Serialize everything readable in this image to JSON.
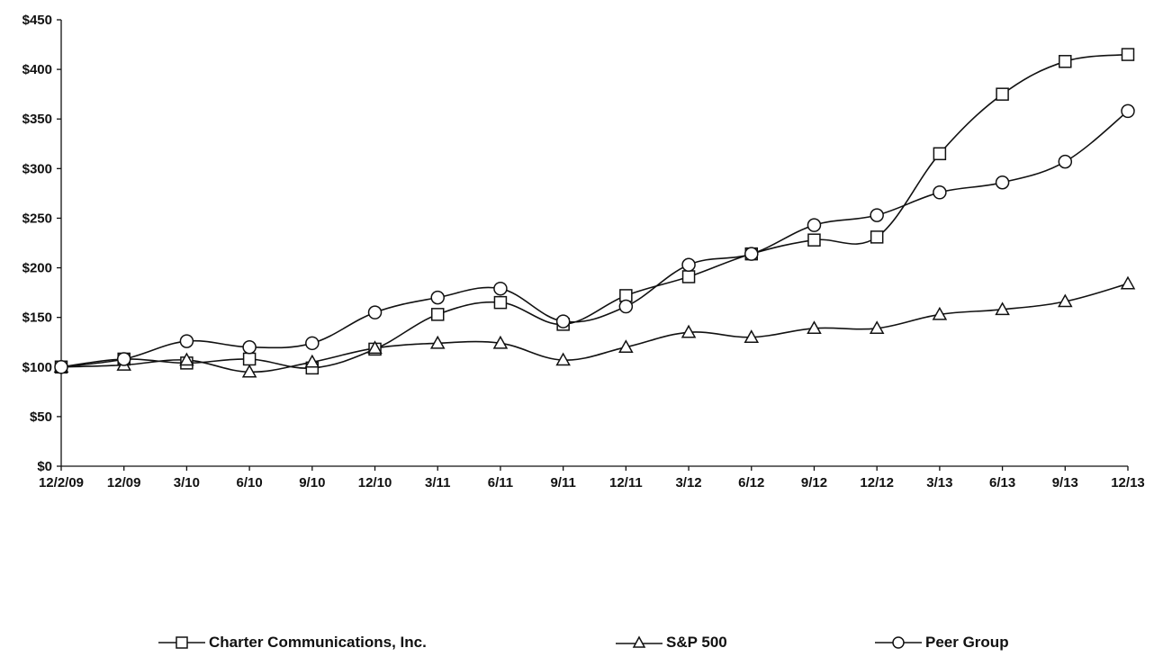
{
  "chart_data": {
    "type": "line",
    "title": "",
    "xlabel": "",
    "ylabel": "",
    "categories": [
      "12/2/09",
      "12/09",
      "3/10",
      "6/10",
      "9/10",
      "12/10",
      "3/11",
      "6/11",
      "9/11",
      "12/11",
      "3/12",
      "6/12",
      "9/12",
      "12/12",
      "3/13",
      "6/13",
      "9/13",
      "12/13"
    ],
    "ylim": [
      0,
      450
    ],
    "yticks": [
      0,
      50,
      100,
      150,
      200,
      250,
      300,
      350,
      400,
      450
    ],
    "ytick_labels": [
      "$0",
      "$50",
      "$100",
      "$150",
      "$200",
      "$250",
      "$300",
      "$350",
      "$400",
      "$450"
    ],
    "grid": false,
    "legend_position": "bottom",
    "series": [
      {
        "name": "Charter Communications, Inc.",
        "marker": "square",
        "values": [
          100,
          108,
          104,
          108,
          99,
          118,
          153,
          165,
          143,
          172,
          191,
          214,
          228,
          231,
          315,
          375,
          408,
          415
        ]
      },
      {
        "name": "S&P 500",
        "marker": "triangle",
        "values": [
          100,
          102,
          107,
          95,
          105,
          119,
          124,
          124,
          107,
          120,
          135,
          130,
          139,
          139,
          153,
          158,
          166,
          184
        ]
      },
      {
        "name": "Peer Group",
        "marker": "circle",
        "values": [
          100,
          108,
          126,
          120,
          124,
          155,
          170,
          179,
          146,
          161,
          203,
          214,
          243,
          253,
          276,
          286,
          307,
          358
        ]
      }
    ]
  }
}
